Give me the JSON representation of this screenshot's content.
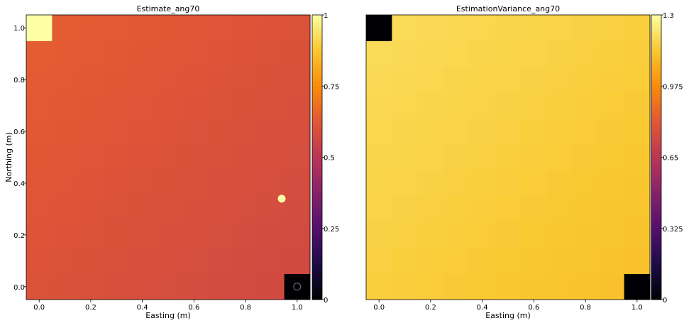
{
  "chart_data": [
    {
      "type": "heatmap",
      "title": "Estimate_ang70",
      "xlabel": "Easting (m)",
      "ylabel": "Northing (m)",
      "xlim": [
        -0.05,
        1.05
      ],
      "ylim": [
        -0.05,
        1.05
      ],
      "x_ticks": [
        "0.0",
        "0.2",
        "0.4",
        "0.6",
        "0.8",
        "1.0"
      ],
      "y_ticks": [
        "0.0",
        "0.2",
        "0.4",
        "0.6",
        "0.8",
        "1.0"
      ],
      "colormap": "inferno",
      "color_range": [
        0,
        1
      ],
      "colorbar_ticks": [
        "0",
        "0.25",
        "0.5",
        "0.75",
        "1"
      ],
      "grid": {
        "nx": 11,
        "ny": 11,
        "x0": 0.0,
        "y0": 0.0,
        "dx": 0.1,
        "dy": 0.1
      },
      "cells": [
        {
          "x": 0.0,
          "y": 1.0,
          "value": 1.0
        },
        {
          "x": 1.0,
          "y": 0.0,
          "value": 0.0
        }
      ],
      "background_value": 0.62,
      "background_trend": {
        "top_left": 0.64,
        "bottom_right": 0.57
      },
      "points": [
        {
          "x": 0.94,
          "y": 0.34,
          "value": 1.0
        },
        {
          "x": 1.0,
          "y": 0.0,
          "value": 0.0
        }
      ]
    },
    {
      "type": "heatmap",
      "title": "EstimationVariance_ang70",
      "xlabel": "Easting (m)",
      "ylabel": "",
      "xlim": [
        -0.05,
        1.05
      ],
      "ylim": [
        -0.05,
        1.05
      ],
      "x_ticks": [
        "0.0",
        "0.2",
        "0.4",
        "0.6",
        "0.8",
        "1.0"
      ],
      "colormap": "inferno",
      "color_range": [
        0,
        1.3
      ],
      "colorbar_ticks": [
        "0",
        "0.325",
        "0.65",
        "0.975",
        "1.3"
      ],
      "grid": {
        "nx": 11,
        "ny": 11,
        "x0": 0.0,
        "y0": 0.0,
        "dx": 0.1,
        "dy": 0.1
      },
      "cells": [
        {
          "x": 0.0,
          "y": 1.0,
          "value": 0.0
        },
        {
          "x": 1.0,
          "y": 0.0,
          "value": 0.0
        }
      ],
      "background_value": 1.17,
      "background_trend": {
        "top_left": 1.2,
        "bottom_right": 1.12
      }
    }
  ]
}
